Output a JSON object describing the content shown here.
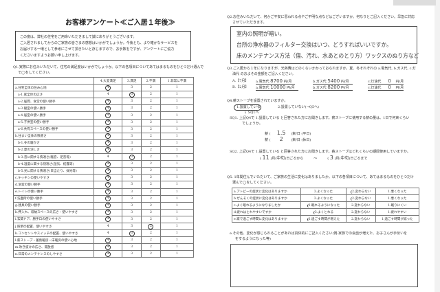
{
  "title": "お客様アンケート≪ご入居１年後≫",
  "intro": [
    "この度は、弊社の住宅をご用命いただきまして誠にありがとうございます。",
    "ご入居されましてからのご家族の皆さまの感想はいかがでしょうか。今後とも、より確かなサービスを",
    "お届けする一環として参考にさせて頂きたいと存じますので、お手数をですが、アンケートにご協力",
    "くださいますようお願い申し上げます。"
  ],
  "q1": {
    "text": [
      "Q1.実際にお住みいただいて、住宅の満足度はいかがでしょうか。以下の各項目についてあてはまるものをひとつだけ選んで",
      "で◯をしてください。"
    ],
    "headers": [
      "",
      "4.大変満足",
      "3.満足",
      "2.不満",
      "1.非常に不満"
    ],
    "rows": [
      {
        "item": "a.住宅全体の住み心地",
        "answer": 4
      },
      {
        "item": "a-1.家全体の広さ",
        "answer": 3
      },
      {
        "item": "a-2.居間、食堂の使い勝手",
        "answer": 4
      },
      {
        "item": "a-3.寝室の使い勝手",
        "answer": 4
      },
      {
        "item": "a-4.居室の使い勝手",
        "answer": 4
      },
      {
        "item": "a-5.子供室の使い勝手",
        "answer": 4
      },
      {
        "item": "a-6.共有スペースの使い勝手",
        "answer": 4
      },
      {
        "item": "b.住まい全体の快適さ",
        "answer": 4
      },
      {
        "item": "b-1.冬の暖かさ",
        "answer": 4
      },
      {
        "item": "b-2.夏の涼しさ",
        "answer": 4
      },
      {
        "item": "b-3.音に関する快適さ(騒音、足音等)",
        "answer": 3
      },
      {
        "item": "b-4.湿度に関する快適さ(湿気、結露等)",
        "answer": 4
      },
      {
        "item": "b-5.光に関する快適さ(日当たり、採光等)",
        "answer": 4
      },
      {
        "item": "c.キッチンの使いやすさ",
        "answer": 4
      },
      {
        "item": "d.浴室の使い勝手",
        "answer": 4
      },
      {
        "item": "e.トイレの使い勝手",
        "answer": 4
      },
      {
        "item": "f.洗面所の使い勝手",
        "answer": 4
      },
      {
        "item": "g.建具の使い勝手",
        "answer": 4
      },
      {
        "item": "h.押入れ、収納スペースの広さ・使いやすさ",
        "answer": 4
      },
      {
        "item": "i.玄関ドア、勝手口の使いやすさ",
        "answer": 4
      },
      {
        "item": "j.照明の配置、使いやすさ",
        "answer": 2
      },
      {
        "item": "k.コンセントやスイッチの配置、使いやすさ",
        "answer": 3
      },
      {
        "item": "l.薪ストーブ・蓄熱暖房・床暖房の使い心地",
        "answer": 4
      },
      {
        "item": "m.吹き抜けの広さ、開放感",
        "answer": 4
      },
      {
        "item": "n.日常のメンテナンスのしやすさ",
        "answer": 4
      }
    ]
  },
  "q2": {
    "text": [
      "Q2.お住みいただいて、何かご不安に思われる点やご不明な点などはございますか。何なりとご記入ください。早急に対応",
      "させていただきます。"
    ],
    "answer": [
      "室内の照明が暗い。",
      "台所の浄水器のフィルター交換はいつ、どうすればいいですか。",
      "床のメンテナンス方法（傷、汚れ、水あとのとり方）ワックスのぬり方など"
    ]
  },
  "q3": {
    "text": [
      "Q3.ご入居から１年になりますが、光熱費はどのくらいかかっておられますか。夏、冬それぞれの a.電気代, b.ガス代, c.灯",
      "油代 のおよその金額をご記入ください。"
    ],
    "rows": [
      {
        "label": "A.【7月】",
        "a_label": "a.電気代",
        "a": "8700",
        "b_label": "b.ガス代",
        "b": "5400",
        "c_label": "c.灯油代",
        "c": "0",
        "unit": "円/月"
      },
      {
        "label": "B.【2月】",
        "a_label": "a.電気代",
        "a": "10000",
        "b_label": "b.ガス代",
        "b": "8200",
        "c_label": "c.灯油代",
        "c": "0",
        "unit": "円/月"
      }
    ]
  },
  "q4": {
    "text": "Q4.薪ストーブを設置されていますか。",
    "opt1": "1.設置している",
    "opt2": "2.設置していない(→Q5へ)",
    "arrow": "SQ1へ",
    "sq1": [
      "SQ1. 上記Q4で 1.設置している と回答された方にお聞きします。薪ストーブに使用する薪の量は、1日で何束くらい",
      "でしょうか。"
    ],
    "wood": [
      {
        "label": "薪",
        "value": "1.5",
        "unit": ")束/日 (平日)"
      },
      {
        "label": "薪",
        "value": "2",
        "unit": ")束/日 (休日)"
      }
    ],
    "sq2": "SQ2. 上記Q4で 1.設置している と回答された方にお聞きします。薪ストーブはどれくらいの期間使用していますか。",
    "period": {
      "from_month": "11",
      "from_part": "中旬",
      "to_month": "3",
      "to_part": "中旬",
      "from_text": ")月(",
      "mid": ")日ごろから",
      "tilde": "〜",
      "to_text": ")日ごろまで"
    }
  },
  "q5": {
    "text": [
      "Q5. 1年間住んでいただいて、ご家族の生活に変化はありましたか。以下の各項目について、あてはまるものをひとつだけ",
      "選んで◯をしてください。"
    ],
    "rows": [
      {
        "item": "a.アトピーの症状に変化はありますか",
        "o3": "3.よくなった",
        "o2": "2.変わらない",
        "o1": "1.悪くなった",
        "answer": 2
      },
      {
        "item": "b.ぜんそくの症状に変化はありますか",
        "o3": "3.よくなった",
        "o2": "2.変わらない",
        "o1": "1.悪くなった",
        "answer": 2
      },
      {
        "item": "c.よく眠れるようになりましたか",
        "o3": "3.眠れるようになった",
        "o2": "2.変わらない",
        "o1": "1.眠りにくい",
        "answer": 3
      },
      {
        "item": "d.疲れはとれやすいですか",
        "o3": "3.よくとれる",
        "o2": "2.変わらない",
        "o1": "1.疲れやすい",
        "answer": 3
      },
      {
        "item": "e.家で過ごす時間に変化はありますか",
        "o3": "3.過ごす時間が増えた",
        "o2": "2.変わらない",
        "o1": "1.過ごす時間が減った",
        "answer": 3
      }
    ],
    "other": [
      "e.その他、変化が感じられることがあれば具体的にご記入ください(例:家族での会話が増えた、お子さんが手伝いを",
      "をするようになった等)"
    ]
  }
}
